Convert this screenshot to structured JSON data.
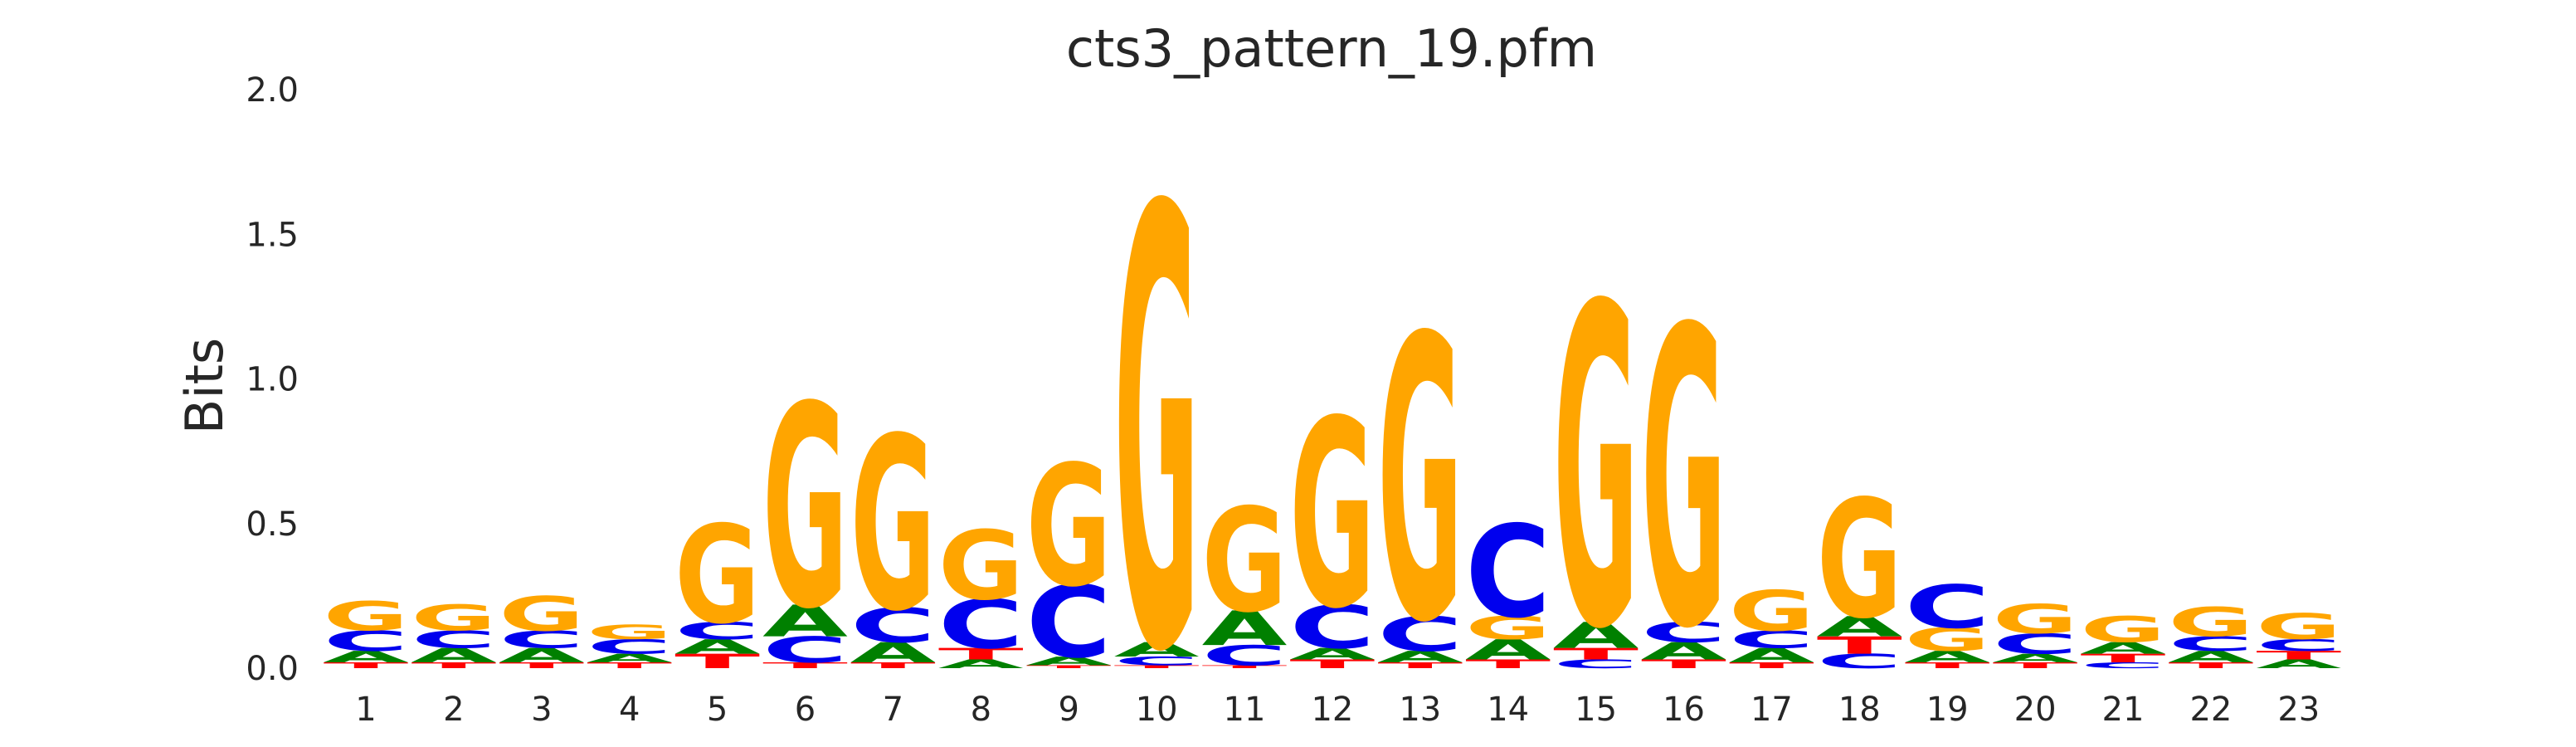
{
  "chart_data": {
    "type": "sequence-logo",
    "title": "cts3_pattern_19.pfm",
    "xlabel": "",
    "ylabel": "Bits",
    "ylim": [
      0,
      2.0
    ],
    "yticks": [
      "0.0",
      "0.5",
      "1.0",
      "1.5",
      "2.0"
    ],
    "positions": [
      "1",
      "2",
      "3",
      "4",
      "5",
      "6",
      "7",
      "8",
      "9",
      "10",
      "11",
      "12",
      "13",
      "14",
      "15",
      "16",
      "17",
      "18",
      "19",
      "20",
      "21",
      "22",
      "23"
    ],
    "letter_colors": {
      "A": "#008000",
      "C": "#0000ee",
      "G": "#ffa500",
      "T": "#ff0000"
    },
    "grid": false,
    "stacks": [
      [
        [
          "T",
          0.02
        ],
        [
          "A",
          0.04
        ],
        [
          "C",
          0.07
        ],
        [
          "G",
          0.1
        ]
      ],
      [
        [
          "T",
          0.02
        ],
        [
          "A",
          0.05
        ],
        [
          "C",
          0.06
        ],
        [
          "G",
          0.09
        ]
      ],
      [
        [
          "T",
          0.02
        ],
        [
          "A",
          0.05
        ],
        [
          "C",
          0.06
        ],
        [
          "G",
          0.12
        ]
      ],
      [
        [
          "T",
          0.02
        ],
        [
          "A",
          0.03
        ],
        [
          "C",
          0.05
        ],
        [
          "G",
          0.05
        ]
      ],
      [
        [
          "T",
          0.05
        ],
        [
          "A",
          0.05
        ],
        [
          "C",
          0.06
        ],
        [
          "G",
          0.34
        ]
      ],
      [
        [
          "T",
          0.02
        ],
        [
          "C",
          0.09
        ],
        [
          "A",
          0.11
        ],
        [
          "G",
          0.7
        ]
      ],
      [
        [
          "T",
          0.02
        ],
        [
          "A",
          0.07
        ],
        [
          "C",
          0.12
        ],
        [
          "G",
          0.6
        ]
      ],
      [
        [
          "A",
          0.03
        ],
        [
          "T",
          0.04
        ],
        [
          "C",
          0.17
        ],
        [
          "G",
          0.24
        ]
      ],
      [
        [
          "T",
          0.01
        ],
        [
          "A",
          0.03
        ],
        [
          "C",
          0.25
        ],
        [
          "G",
          0.42
        ]
      ],
      [
        [
          "T",
          0.01
        ],
        [
          "C",
          0.03
        ],
        [
          "A",
          0.05
        ],
        [
          "G",
          1.52
        ]
      ],
      [
        [
          "T",
          0.01
        ],
        [
          "C",
          0.07
        ],
        [
          "A",
          0.12
        ],
        [
          "G",
          0.36
        ]
      ],
      [
        [
          "T",
          0.03
        ],
        [
          "A",
          0.04
        ],
        [
          "C",
          0.15
        ],
        [
          "G",
          0.65
        ]
      ],
      [
        [
          "T",
          0.02
        ],
        [
          "A",
          0.04
        ],
        [
          "C",
          0.12
        ],
        [
          "G",
          0.98
        ]
      ],
      [
        [
          "T",
          0.03
        ],
        [
          "A",
          0.07
        ],
        [
          "G",
          0.08
        ],
        [
          "C",
          0.32
        ]
      ],
      [
        [
          "C",
          0.03
        ],
        [
          "T",
          0.04
        ],
        [
          "A",
          0.09
        ],
        [
          "G",
          1.11
        ]
      ],
      [
        [
          "T",
          0.03
        ],
        [
          "A",
          0.06
        ],
        [
          "C",
          0.07
        ],
        [
          "G",
          1.03
        ]
      ],
      [
        [
          "T",
          0.02
        ],
        [
          "A",
          0.05
        ],
        [
          "C",
          0.06
        ],
        [
          "G",
          0.14
        ]
      ],
      [
        [
          "C",
          0.05
        ],
        [
          "T",
          0.06
        ],
        [
          "A",
          0.07
        ],
        [
          "G",
          0.41
        ]
      ],
      [
        [
          "T",
          0.02
        ],
        [
          "A",
          0.04
        ],
        [
          "G",
          0.08
        ],
        [
          "C",
          0.15
        ]
      ],
      [
        [
          "T",
          0.02
        ],
        [
          "A",
          0.03
        ],
        [
          "C",
          0.07
        ],
        [
          "G",
          0.1
        ]
      ],
      [
        [
          "C",
          0.02
        ],
        [
          "T",
          0.03
        ],
        [
          "A",
          0.04
        ],
        [
          "G",
          0.09
        ]
      ],
      [
        [
          "T",
          0.02
        ],
        [
          "A",
          0.04
        ],
        [
          "C",
          0.05
        ],
        [
          "G",
          0.1
        ]
      ],
      [
        [
          "A",
          0.03
        ],
        [
          "T",
          0.03
        ],
        [
          "C",
          0.04
        ],
        [
          "G",
          0.09
        ]
      ]
    ]
  }
}
